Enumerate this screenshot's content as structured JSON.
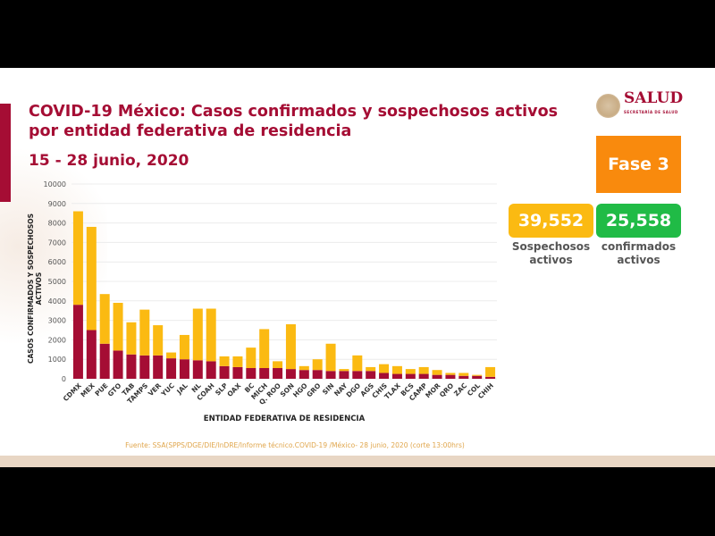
{
  "header": {
    "title_line1": "COVID-19 México: Casos confirmados y sospechosos activos",
    "title_line2": "por entidad federativa de residencia",
    "date_range": "15 - 28 junio, 2020"
  },
  "logo": {
    "name": "SALUD",
    "subtitle": "SECRETARÍA DE SALUD"
  },
  "phase": {
    "label": "Fase 3",
    "color": "#f98a0d"
  },
  "stats": [
    {
      "value": "39,552",
      "label_line1": "Sospechosos",
      "label_line2": "activos",
      "color": "#fbba12"
    },
    {
      "value": "25,558",
      "label_line1": "confirmados",
      "label_line2": "activos",
      "color": "#20bb46"
    }
  ],
  "source": "Fuente: SSA(SPPS/DGE/DIE/InDRE/Informe técnico.COVID-19 /México- 28 junio, 2020 (corte 13:00hrs)",
  "chart_data": {
    "type": "bar",
    "stacked": true,
    "xlabel": "ENTIDAD FEDERATIVA DE RESIDENCIA",
    "ylabel": "CASOS CONFIRMADOS Y SOSPECHOSOS ACTIVOS",
    "ylim": [
      0,
      10000
    ],
    "yticks": [
      0,
      1000,
      2000,
      3000,
      4000,
      5000,
      6000,
      7000,
      8000,
      9000,
      10000
    ],
    "grid": true,
    "categories": [
      "CDMX",
      "MEX",
      "PUE",
      "GTO",
      "TAB",
      "TAMPS",
      "VER",
      "YUC",
      "JAL",
      "NL",
      "COAH",
      "SLP",
      "OAX",
      "BC",
      "MICH",
      "Q. ROO",
      "SON",
      "HGO",
      "GRO",
      "SIN",
      "NAY",
      "DGO",
      "AGS",
      "CHIS",
      "TLAX",
      "BCS",
      "CAMP",
      "MOR",
      "QRO",
      "ZAC",
      "COL",
      "CHIH"
    ],
    "series": [
      {
        "color": "#a50d34",
        "values": [
          3800,
          2500,
          1800,
          1450,
          1250,
          1200,
          1200,
          1050,
          1000,
          950,
          900,
          650,
          600,
          550,
          550,
          550,
          500,
          450,
          450,
          400,
          400,
          400,
          400,
          300,
          250,
          250,
          250,
          200,
          200,
          150,
          150,
          100
        ]
      },
      {
        "color": "#fbba12",
        "values": [
          4800,
          5300,
          2550,
          2450,
          1650,
          2350,
          1550,
          300,
          1250,
          2650,
          2700,
          500,
          550,
          1050,
          2000,
          350,
          2300,
          200,
          550,
          1400,
          100,
          800,
          200,
          450,
          400,
          250,
          350,
          250,
          100,
          150,
          50,
          500
        ]
      }
    ]
  }
}
